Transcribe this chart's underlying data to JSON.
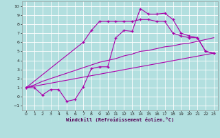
{
  "xlabel": "Windchill (Refroidissement éolien,°C)",
  "bg_color": "#b2dfdf",
  "grid_color": "#c8e8e8",
  "line_color": "#aa00aa",
  "xlim": [
    -0.5,
    23.5
  ],
  "ylim": [
    -1.5,
    10.5
  ],
  "xticks": [
    0,
    1,
    2,
    3,
    4,
    5,
    6,
    7,
    8,
    9,
    10,
    11,
    12,
    13,
    14,
    15,
    16,
    17,
    18,
    19,
    20,
    21,
    22,
    23
  ],
  "yticks": [
    -1,
    0,
    1,
    2,
    3,
    4,
    5,
    6,
    7,
    8,
    9,
    10
  ],
  "curve1_x": [
    0,
    1,
    2,
    3,
    4,
    5,
    6,
    7,
    8,
    9,
    10,
    11,
    12,
    13,
    14,
    15,
    16,
    17,
    18,
    19,
    20,
    21,
    22,
    23
  ],
  "curve1_y": [
    1.0,
    1.0,
    0.2,
    0.8,
    0.8,
    -0.5,
    -0.3,
    1.1,
    3.1,
    3.3,
    3.3,
    6.5,
    7.3,
    7.2,
    9.7,
    9.1,
    9.1,
    9.2,
    8.5,
    7.0,
    6.7,
    6.5,
    5.0,
    4.8
  ],
  "curve2_x": [
    0,
    7,
    8,
    9,
    10,
    11,
    12,
    13,
    14,
    15,
    16,
    17,
    18,
    19,
    20,
    21,
    22,
    23
  ],
  "curve2_y": [
    1.0,
    6.0,
    7.3,
    8.3,
    8.3,
    8.3,
    8.3,
    8.3,
    8.5,
    8.5,
    8.3,
    8.3,
    7.0,
    6.7,
    6.5,
    6.5,
    5.0,
    4.8
  ],
  "line_x": [
    0,
    23
  ],
  "line_y": [
    1.0,
    4.8
  ],
  "curve3_x": [
    0,
    1,
    2,
    3,
    4,
    5,
    6,
    7,
    8,
    9,
    10,
    11,
    12,
    13,
    14,
    15,
    16,
    17,
    18,
    19,
    20,
    21,
    22,
    23
  ],
  "curve3_y": [
    1.0,
    1.3,
    1.7,
    2.0,
    2.3,
    2.6,
    2.9,
    3.2,
    3.5,
    3.8,
    4.0,
    4.2,
    4.5,
    4.7,
    5.0,
    5.1,
    5.3,
    5.5,
    5.6,
    5.8,
    5.9,
    6.1,
    6.3,
    6.5
  ]
}
